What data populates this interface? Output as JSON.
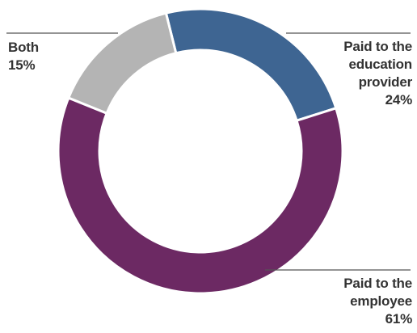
{
  "chart_data": {
    "type": "pie",
    "donut": true,
    "title": "",
    "slices": [
      {
        "label": [
          "Paid to the",
          "education",
          "provider"
        ],
        "value": 24,
        "value_label": "24%",
        "color": "#3e6592"
      },
      {
        "label": [
          "Paid to the",
          "employee"
        ],
        "value": 61,
        "value_label": "61%",
        "color": "#6c2963"
      },
      {
        "label": [
          "Both"
        ],
        "value": 15,
        "value_label": "15%",
        "color": "#b4b4b4"
      }
    ],
    "legend": "none"
  }
}
